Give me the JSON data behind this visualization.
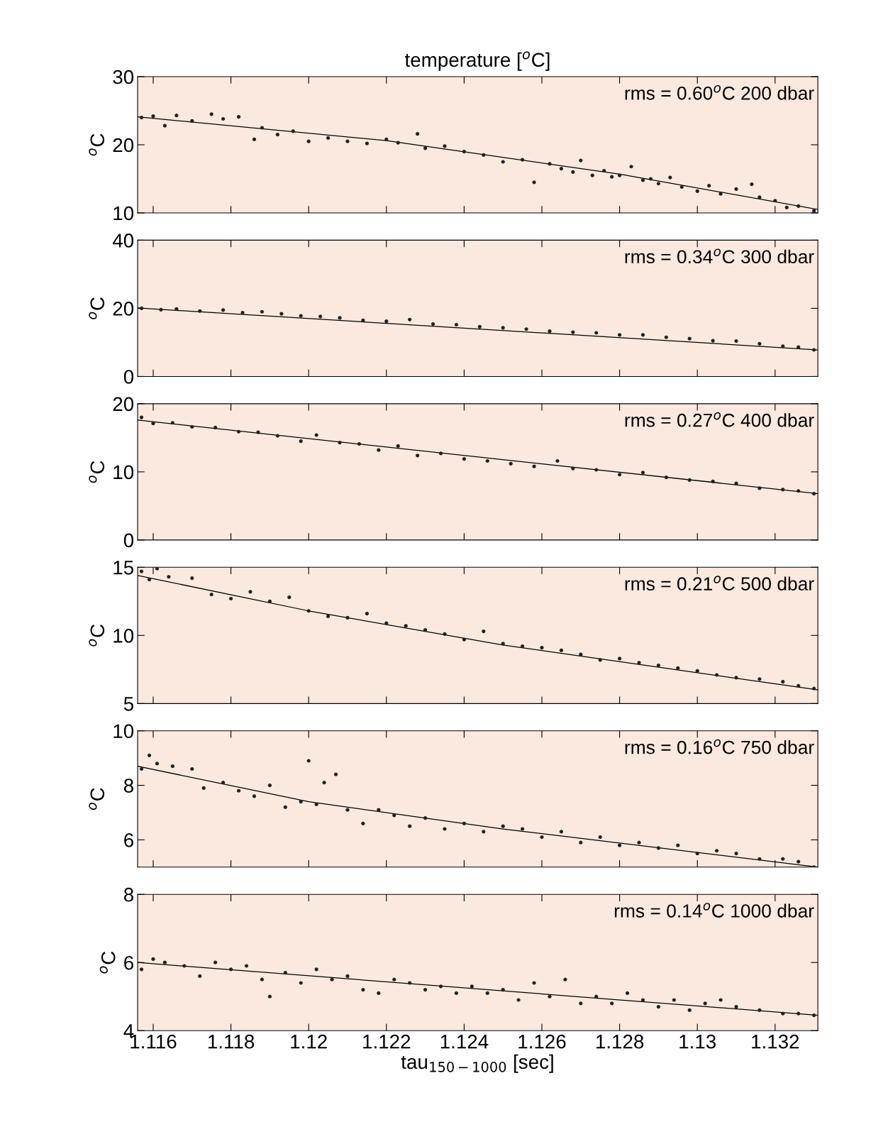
{
  "chart_data": [
    {
      "type": "scatter",
      "title": "temperature [$^{o}$C]",
      "ylabel": "$^{o}$C",
      "annotations": [
        "rms = 0.60$^{o}$C 200 dbar"
      ],
      "xlim": [
        1.1156,
        1.1331
      ],
      "xticks": [
        1.116,
        1.118,
        1.12,
        1.122,
        1.124,
        1.126,
        1.128,
        1.13,
        1.132
      ],
      "ylim": [
        10,
        30
      ],
      "yticks": [
        10,
        20,
        30
      ],
      "tick_labels": "y",
      "series": [
        {
          "type": "scatter",
          "marker": "circle",
          "color": "#222222",
          "x": [
            1.1157,
            1.116,
            1.1163,
            1.1166,
            1.117,
            1.1175,
            1.1178,
            1.1182,
            1.1186,
            1.1188,
            1.1192,
            1.1196,
            1.12,
            1.1205,
            1.121,
            1.1215,
            1.122,
            1.1223,
            1.1228,
            1.123,
            1.1235,
            1.124,
            1.1245,
            1.125,
            1.1255,
            1.1258,
            1.1262,
            1.1265,
            1.1268,
            1.127,
            1.1273,
            1.1276,
            1.1278,
            1.128,
            1.1283,
            1.1286,
            1.1288,
            1.129,
            1.1293,
            1.1296,
            1.13,
            1.1303,
            1.1306,
            1.131,
            1.1314,
            1.1316,
            1.132,
            1.1323,
            1.1326,
            1.133
          ],
          "values": [
            24,
            24.2,
            22.8,
            24.3,
            23.5,
            24.5,
            23.8,
            24.1,
            20.8,
            22.5,
            21.5,
            22,
            20.5,
            21,
            20.5,
            20.2,
            20.8,
            20.3,
            21.6,
            19.5,
            19.8,
            19,
            18.5,
            17.5,
            17.8,
            14.5,
            17.2,
            16.5,
            16,
            17.7,
            15.5,
            16.2,
            15.3,
            15.5,
            16.8,
            14.8,
            15,
            14.3,
            15.2,
            13.8,
            13.2,
            14,
            12.8,
            13.5,
            14.2,
            12.3,
            11.8,
            10.8,
            11,
            10.3
          ]
        },
        {
          "type": "line",
          "color": "#000000",
          "x": [
            1.1156,
            1.122,
            1.128,
            1.1331
          ],
          "values": [
            24.1,
            20.6,
            15.7,
            10.5
          ]
        }
      ]
    },
    {
      "type": "scatter",
      "ylabel": "$^{o}$C",
      "annotations": [
        "rms = 0.34$^{o}$C 300 dbar"
      ],
      "xlim": [
        1.1156,
        1.1331
      ],
      "xticks": [
        1.116,
        1.118,
        1.12,
        1.122,
        1.124,
        1.126,
        1.128,
        1.13,
        1.132
      ],
      "ylim": [
        0,
        40
      ],
      "yticks": [
        0,
        20,
        40
      ],
      "tick_labels": "y",
      "series": [
        {
          "type": "scatter",
          "marker": "circle",
          "color": "#222222",
          "x": [
            1.1157,
            1.1162,
            1.1166,
            1.1172,
            1.1178,
            1.1183,
            1.1188,
            1.1193,
            1.1198,
            1.1203,
            1.1208,
            1.1214,
            1.122,
            1.1226,
            1.1232,
            1.1238,
            1.1244,
            1.125,
            1.1256,
            1.1262,
            1.1268,
            1.1274,
            1.128,
            1.1286,
            1.1292,
            1.1298,
            1.1304,
            1.131,
            1.1316,
            1.1322,
            1.1326,
            1.133
          ],
          "values": [
            20,
            19.6,
            19.8,
            19.2,
            19.5,
            18.7,
            19,
            18.4,
            17.8,
            17.6,
            17.2,
            16.5,
            16.2,
            16.7,
            15.4,
            15.2,
            14.6,
            14.3,
            13.9,
            13.3,
            13,
            12.8,
            12.2,
            12.2,
            11.5,
            11.1,
            10.5,
            10.4,
            9.6,
            8.9,
            8.6,
            7.8
          ]
        },
        {
          "type": "line",
          "color": "#000000",
          "x": [
            1.1156,
            1.1331
          ],
          "values": [
            20.1,
            7.8
          ]
        }
      ]
    },
    {
      "type": "scatter",
      "ylabel": "$^{o}$C",
      "annotations": [
        "rms = 0.27$^{o}$C 400 dbar"
      ],
      "xlim": [
        1.1156,
        1.1331
      ],
      "xticks": [
        1.116,
        1.118,
        1.12,
        1.122,
        1.124,
        1.126,
        1.128,
        1.13,
        1.132
      ],
      "ylim": [
        0,
        20
      ],
      "yticks": [
        0,
        10,
        20
      ],
      "tick_labels": "y",
      "series": [
        {
          "type": "scatter",
          "marker": "circle",
          "color": "#222222",
          "x": [
            1.1157,
            1.116,
            1.1165,
            1.117,
            1.1176,
            1.1182,
            1.1187,
            1.1192,
            1.1198,
            1.1202,
            1.1208,
            1.1213,
            1.1218,
            1.1223,
            1.1228,
            1.1234,
            1.124,
            1.1246,
            1.1252,
            1.1258,
            1.1264,
            1.1268,
            1.1274,
            1.128,
            1.1286,
            1.1292,
            1.1298,
            1.1304,
            1.131,
            1.1316,
            1.1322,
            1.1326,
            1.133
          ],
          "values": [
            18,
            17.1,
            17.2,
            16.6,
            16.5,
            15.9,
            15.8,
            15.3,
            14.5,
            15.4,
            14.3,
            14.1,
            13.2,
            13.8,
            12.4,
            12.7,
            11.9,
            11.6,
            11.2,
            10.8,
            11.6,
            10.5,
            10.3,
            9.6,
            9.9,
            9.2,
            8.8,
            8.6,
            8.3,
            7.6,
            7.4,
            7.2,
            6.8
          ]
        },
        {
          "type": "line",
          "color": "#000000",
          "x": [
            1.1156,
            1.1331
          ],
          "values": [
            17.6,
            6.8
          ]
        }
      ]
    },
    {
      "type": "scatter",
      "ylabel": "$^{o}$C",
      "annotations": [
        "rms = 0.21$^{o}$C 500 dbar"
      ],
      "xlim": [
        1.1156,
        1.1331
      ],
      "xticks": [
        1.116,
        1.118,
        1.12,
        1.122,
        1.124,
        1.126,
        1.128,
        1.13,
        1.132
      ],
      "ylim": [
        5,
        15
      ],
      "yticks": [
        5,
        10,
        15
      ],
      "tick_labels": "y",
      "series": [
        {
          "type": "scatter",
          "marker": "circle",
          "color": "#222222",
          "x": [
            1.1157,
            1.1159,
            1.1161,
            1.1164,
            1.117,
            1.1175,
            1.118,
            1.1185,
            1.119,
            1.1195,
            1.12,
            1.1205,
            1.121,
            1.1215,
            1.122,
            1.1225,
            1.123,
            1.1235,
            1.124,
            1.1245,
            1.125,
            1.1255,
            1.126,
            1.1265,
            1.127,
            1.1275,
            1.128,
            1.1285,
            1.129,
            1.1295,
            1.13,
            1.1305,
            1.131,
            1.1316,
            1.1322,
            1.1326,
            1.133
          ],
          "values": [
            14.7,
            14.1,
            14.9,
            14.3,
            14.2,
            13,
            12.7,
            13.2,
            12.5,
            12.8,
            11.8,
            11.4,
            11.3,
            11.6,
            10.9,
            10.7,
            10.4,
            10.1,
            9.7,
            10.3,
            9.4,
            9.2,
            9.1,
            8.9,
            8.6,
            8.2,
            8.3,
            8,
            7.8,
            7.6,
            7.4,
            7.1,
            6.9,
            6.8,
            6.6,
            6.3,
            6.1
          ]
        },
        {
          "type": "line",
          "color": "#000000",
          "x": [
            1.1156,
            1.12,
            1.125,
            1.1331
          ],
          "values": [
            14.4,
            11.8,
            9.3,
            6.0
          ]
        }
      ]
    },
    {
      "type": "scatter",
      "ylabel": "$^{o}$C",
      "annotations": [
        "rms = 0.16$^{o}$C 750 dbar"
      ],
      "xlim": [
        1.1156,
        1.1331
      ],
      "xticks": [
        1.116,
        1.118,
        1.12,
        1.122,
        1.124,
        1.126,
        1.128,
        1.13,
        1.132
      ],
      "ylim": [
        5,
        10
      ],
      "yticks": [
        6,
        8,
        10
      ],
      "tick_labels": "y",
      "series": [
        {
          "type": "scatter",
          "marker": "circle",
          "color": "#222222",
          "x": [
            1.1157,
            1.1159,
            1.1161,
            1.1165,
            1.117,
            1.1173,
            1.1178,
            1.1182,
            1.1186,
            1.119,
            1.1194,
            1.1198,
            1.12,
            1.1202,
            1.1204,
            1.1207,
            1.121,
            1.1214,
            1.1218,
            1.1222,
            1.1226,
            1.123,
            1.1235,
            1.124,
            1.1245,
            1.125,
            1.1255,
            1.126,
            1.1265,
            1.127,
            1.1275,
            1.128,
            1.1285,
            1.129,
            1.1295,
            1.13,
            1.1305,
            1.131,
            1.1316,
            1.1322,
            1.1326,
            1.133
          ],
          "values": [
            8.6,
            9.1,
            8.8,
            8.7,
            8.6,
            7.9,
            8.1,
            7.8,
            7.6,
            8,
            7.2,
            7.4,
            8.9,
            7.3,
            8.1,
            8.4,
            7.1,
            6.6,
            7.1,
            6.9,
            6.5,
            6.8,
            6.4,
            6.6,
            6.3,
            6.5,
            6.4,
            6.1,
            6.3,
            5.9,
            6.1,
            5.8,
            5.9,
            5.7,
            5.8,
            5.5,
            5.6,
            5.5,
            5.3,
            5.3,
            5.2,
            5.0
          ]
        },
        {
          "type": "line",
          "color": "#000000",
          "x": [
            1.1156,
            1.12,
            1.125,
            1.1331
          ],
          "values": [
            8.7,
            7.4,
            6.4,
            5.0
          ]
        }
      ]
    },
    {
      "type": "scatter",
      "ylabel": "$^{o}$C",
      "xlabel": "tau$_{150−1000}$ [sec]",
      "annotations": [
        "rms = 0.14$^{o}$C 1000 dbar"
      ],
      "xlim": [
        1.1156,
        1.1331
      ],
      "xticks": [
        1.116,
        1.118,
        1.12,
        1.122,
        1.124,
        1.126,
        1.128,
        1.13,
        1.132
      ],
      "ylim": [
        4,
        8
      ],
      "yticks": [
        4,
        6,
        8
      ],
      "series": [
        {
          "type": "scatter",
          "marker": "circle",
          "color": "#222222",
          "x": [
            1.1157,
            1.116,
            1.1163,
            1.1168,
            1.1172,
            1.1176,
            1.118,
            1.1184,
            1.1188,
            1.119,
            1.1194,
            1.1198,
            1.1202,
            1.1206,
            1.121,
            1.1214,
            1.1218,
            1.1222,
            1.1226,
            1.123,
            1.1234,
            1.1238,
            1.1242,
            1.1246,
            1.125,
            1.1254,
            1.1258,
            1.1262,
            1.1266,
            1.127,
            1.1274,
            1.1278,
            1.1282,
            1.1286,
            1.129,
            1.1294,
            1.1298,
            1.1302,
            1.1306,
            1.131,
            1.1316,
            1.1322,
            1.1326,
            1.133
          ],
          "values": [
            5.8,
            6.1,
            6,
            5.9,
            5.6,
            6,
            5.8,
            5.9,
            5.5,
            5,
            5.7,
            5.4,
            5.8,
            5.5,
            5.6,
            5.2,
            5.1,
            5.5,
            5.4,
            5.2,
            5.3,
            5.1,
            5.3,
            5.1,
            5.2,
            4.9,
            5.4,
            5,
            5.5,
            4.8,
            5,
            4.8,
            5.1,
            4.9,
            4.7,
            4.9,
            4.6,
            4.8,
            4.9,
            4.7,
            4.6,
            4.5,
            4.5,
            4.45
          ]
        },
        {
          "type": "line",
          "color": "#000000",
          "x": [
            1.1156,
            1.1331
          ],
          "values": [
            6.0,
            4.45
          ]
        }
      ]
    }
  ]
}
